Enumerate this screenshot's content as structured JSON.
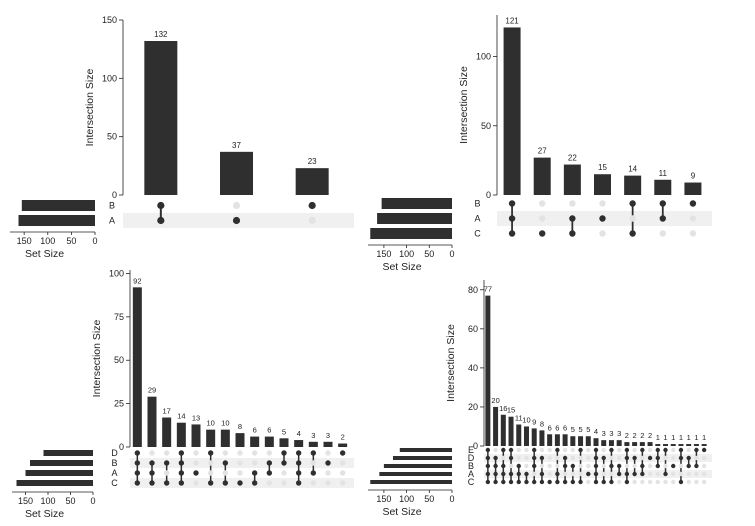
{
  "chart_data": [
    {
      "type": "bar",
      "title": "",
      "ylabel": "Intersection Size",
      "set_size_label": "Set Size",
      "ylim": [
        0,
        150
      ],
      "yticks": [
        0,
        50,
        100,
        150
      ],
      "set_ticks": [
        150,
        100,
        50,
        0
      ],
      "set_max": 180,
      "sets": [
        "B",
        "A"
      ],
      "set_sizes": [
        155,
        162
      ],
      "values": [
        132,
        37,
        23
      ],
      "memberships": [
        [
          "B",
          "A"
        ],
        [
          "A"
        ],
        [
          "B"
        ]
      ]
    },
    {
      "type": "bar",
      "title": "",
      "ylabel": "Intersection Size",
      "set_size_label": "Set Size",
      "ylim": [
        0,
        130
      ],
      "yticks": [
        0,
        50,
        100
      ],
      "set_ticks": [
        150,
        100,
        50,
        0
      ],
      "set_max": 185,
      "sets": [
        "B",
        "A",
        "C"
      ],
      "set_sizes": [
        155,
        165,
        180
      ],
      "values": [
        121,
        27,
        22,
        15,
        14,
        11,
        9
      ],
      "memberships": [
        [
          "B",
          "A",
          "C"
        ],
        [
          "C"
        ],
        [
          "A",
          "C"
        ],
        [
          "A"
        ],
        [
          "B",
          "C"
        ],
        [
          "B",
          "A"
        ],
        [
          "B"
        ]
      ]
    },
    {
      "type": "bar",
      "title": "",
      "ylabel": "Intersection Size",
      "set_size_label": "Set Size",
      "ylim": [
        0,
        102
      ],
      "yticks": [
        0,
        25,
        50,
        75,
        100
      ],
      "set_ticks": [
        150,
        100,
        50,
        0
      ],
      "set_max": 180,
      "sets": [
        "D",
        "B",
        "A",
        "C"
      ],
      "set_sizes": [
        110,
        140,
        150,
        170
      ],
      "values": [
        92,
        29,
        17,
        14,
        13,
        10,
        10,
        8,
        6,
        6,
        5,
        4,
        3,
        3,
        2
      ],
      "memberships": [
        [
          "D",
          "B",
          "A",
          "C"
        ],
        [
          "B",
          "A",
          "C"
        ],
        [
          "B",
          "C"
        ],
        [
          "D",
          "B",
          "A",
          "C"
        ],
        [
          "A"
        ],
        [
          "D",
          "C"
        ],
        [
          "B",
          "C"
        ],
        [
          "C"
        ],
        [
          "A",
          "C"
        ],
        [
          "B",
          "A"
        ],
        [
          "D",
          "B"
        ],
        [
          "D",
          "B",
          "A",
          "C"
        ],
        [
          "D",
          "A"
        ],
        [
          "B"
        ],
        [
          "D"
        ]
      ]
    },
    {
      "type": "bar",
      "title": "",
      "ylabel": "Intersection Size",
      "set_size_label": "Set Size",
      "ylim": [
        0,
        85
      ],
      "yticks": [
        0,
        20,
        40,
        60,
        80
      ],
      "set_ticks": [
        150,
        100,
        50,
        0
      ],
      "set_max": 185,
      "sets": [
        "E",
        "D",
        "B",
        "A",
        "C"
      ],
      "set_sizes": [
        115,
        130,
        150,
        160,
        180
      ],
      "values": [
        77,
        20,
        16,
        15,
        11,
        10,
        9,
        8,
        6,
        6,
        6,
        5,
        5,
        5,
        4,
        3,
        3,
        3,
        2,
        2,
        2,
        2,
        1,
        1,
        1,
        1,
        1,
        1,
        1
      ],
      "memberships": [
        [
          "E",
          "D",
          "B",
          "A",
          "C"
        ],
        [
          "D",
          "B",
          "A",
          "C"
        ],
        [
          "E",
          "B",
          "A",
          "C"
        ],
        [
          "E",
          "D",
          "A",
          "C"
        ],
        [
          "B",
          "A",
          "C"
        ],
        [
          "A",
          "C"
        ],
        [
          "E",
          "D",
          "B",
          "C"
        ],
        [
          "D",
          "A",
          "C"
        ],
        [
          "C"
        ],
        [
          "E",
          "A",
          "C"
        ],
        [
          "D",
          "B",
          "C"
        ],
        [
          "B",
          "C"
        ],
        [
          "E",
          "C"
        ],
        [
          "A"
        ],
        [
          "E",
          "D",
          "B",
          "A",
          "C"
        ],
        [
          "D",
          "C"
        ],
        [
          "E",
          "B",
          "C"
        ],
        [
          "B",
          "A"
        ],
        [
          "E",
          "D",
          "A",
          "C"
        ],
        [
          "D",
          "A"
        ],
        [
          "E",
          "B",
          "A"
        ],
        [
          "D"
        ],
        [
          "E",
          "D",
          "B"
        ],
        [
          "E",
          "A"
        ],
        [
          "B"
        ],
        [
          "E",
          "D",
          "C"
        ],
        [
          "D",
          "B"
        ],
        [
          "E",
          "B"
        ],
        [
          "E"
        ]
      ]
    }
  ]
}
